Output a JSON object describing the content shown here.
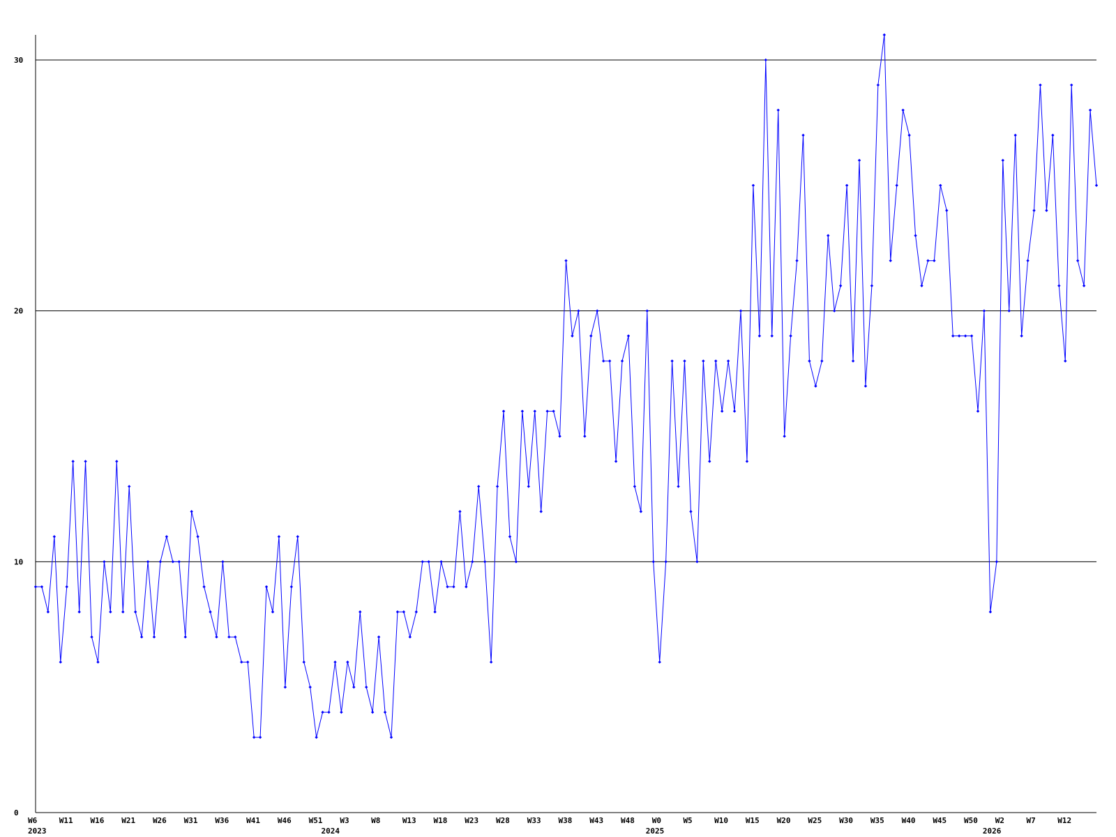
{
  "chart_data": {
    "type": "line",
    "title": "",
    "xlabel": "",
    "ylabel": "",
    "ylim": [
      0,
      31
    ],
    "yticks": [
      0,
      10,
      20,
      30
    ],
    "grid": true,
    "colors": {
      "series": "#0000ff",
      "axis": "#000000",
      "grid": "#000000",
      "background": "#ffffff"
    },
    "x_tick_labels": [
      {
        "index": 0,
        "label": "W6"
      },
      {
        "index": 5,
        "label": "W11"
      },
      {
        "index": 10,
        "label": "W16"
      },
      {
        "index": 15,
        "label": "W21"
      },
      {
        "index": 20,
        "label": "W26"
      },
      {
        "index": 25,
        "label": "W31"
      },
      {
        "index": 30,
        "label": "W36"
      },
      {
        "index": 35,
        "label": "W41"
      },
      {
        "index": 40,
        "label": "W46"
      },
      {
        "index": 45,
        "label": "W51"
      },
      {
        "index": 50,
        "label": "W3"
      },
      {
        "index": 55,
        "label": "W8"
      },
      {
        "index": 60,
        "label": "W13"
      },
      {
        "index": 65,
        "label": "W18"
      },
      {
        "index": 70,
        "label": "W23"
      },
      {
        "index": 75,
        "label": "W28"
      },
      {
        "index": 80,
        "label": "W33"
      },
      {
        "index": 85,
        "label": "W38"
      },
      {
        "index": 90,
        "label": "W43"
      },
      {
        "index": 95,
        "label": "W48"
      },
      {
        "index": 100,
        "label": "W0"
      },
      {
        "index": 105,
        "label": "W5"
      },
      {
        "index": 110,
        "label": "W10"
      },
      {
        "index": 115,
        "label": "W15"
      },
      {
        "index": 120,
        "label": "W20"
      },
      {
        "index": 125,
        "label": "W25"
      },
      {
        "index": 130,
        "label": "W30"
      },
      {
        "index": 135,
        "label": "W35"
      },
      {
        "index": 140,
        "label": "W40"
      },
      {
        "index": 145,
        "label": "W45"
      },
      {
        "index": 150,
        "label": "W50"
      },
      {
        "index": 155,
        "label": "W2"
      },
      {
        "index": 160,
        "label": "W7"
      },
      {
        "index": 165,
        "label": "W12"
      }
    ],
    "year_labels": [
      {
        "index": 0,
        "label": "2023"
      },
      {
        "index": 47,
        "label": "2024"
      },
      {
        "index": 99,
        "label": "2025"
      },
      {
        "index": 153,
        "label": "2026"
      }
    ],
    "series": [
      {
        "values": [
          9,
          9,
          8,
          11,
          6,
          9,
          14,
          8,
          14,
          7,
          6,
          10,
          8,
          14,
          8,
          13,
          8,
          7,
          10,
          7,
          10,
          11,
          10,
          10,
          7,
          12,
          11,
          9,
          8,
          7,
          10,
          7,
          7,
          6,
          6,
          3,
          3,
          9,
          8,
          11,
          5,
          9,
          11,
          6,
          5,
          3,
          4,
          4,
          6,
          4,
          6,
          5,
          8,
          5,
          4,
          7,
          4,
          3,
          8,
          8,
          7,
          8,
          10,
          10,
          8,
          10,
          9,
          9,
          12,
          9,
          10,
          13,
          10,
          6,
          13,
          16,
          11,
          10,
          16,
          13,
          16,
          12,
          16,
          16,
          15,
          22,
          19,
          20,
          15,
          19,
          20,
          18,
          18,
          14,
          18,
          19,
          13,
          12,
          20,
          10,
          6,
          10,
          18,
          13,
          18,
          12,
          10,
          18,
          14,
          18,
          16,
          18,
          16,
          20,
          14,
          25,
          19,
          30,
          19,
          28,
          15,
          19,
          22,
          27,
          18,
          17,
          18,
          23,
          20,
          21,
          25,
          18,
          26,
          17,
          21,
          29,
          31,
          22,
          25,
          28,
          27,
          23,
          21,
          22,
          22,
          25,
          24,
          19,
          19,
          19,
          19,
          16,
          20,
          8,
          10,
          26,
          20,
          27,
          19,
          22,
          24,
          29,
          24,
          27,
          21,
          18,
          29,
          22,
          21,
          28,
          25
        ]
      }
    ]
  }
}
